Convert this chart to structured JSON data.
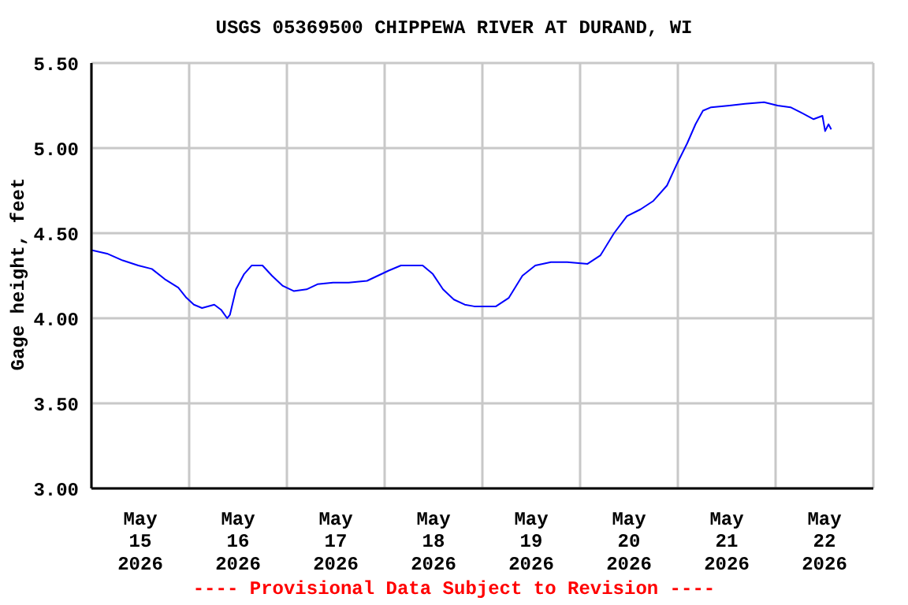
{
  "chart_data": {
    "type": "line",
    "title": "USGS 05369500 CHIPPEWA RIVER AT DURAND, WI",
    "ylabel": "Gage height, feet",
    "annotations": [
      "---- Provisional Data Subject to Revision ----"
    ],
    "x": [
      "2026-05-15T00:00",
      "2026-05-15T03:50",
      "2026-05-15T07:40",
      "2026-05-15T11:30",
      "2026-05-15T14:50",
      "2026-05-15T18:00",
      "2026-05-15T21:20",
      "2026-05-15T23:20",
      "2026-05-16T01:10",
      "2026-05-16T03:10",
      "2026-05-16T06:10",
      "2026-05-16T07:50",
      "2026-05-16T09:20",
      "2026-05-16T10:00",
      "2026-05-16T11:30",
      "2026-05-16T13:30",
      "2026-05-16T15:20",
      "2026-05-16T18:00",
      "2026-05-16T20:20",
      "2026-05-16T23:00",
      "2026-05-17T01:40",
      "2026-05-17T04:50",
      "2026-05-17T07:30",
      "2026-05-17T11:20",
      "2026-05-17T15:10",
      "2026-05-17T19:40",
      "2026-05-17T22:20",
      "2026-05-18T01:00",
      "2026-05-18T04:00",
      "2026-05-18T09:20",
      "2026-05-18T11:50",
      "2026-05-18T14:20",
      "2026-05-18T17:00",
      "2026-05-18T19:40",
      "2026-05-18T22:00",
      "2026-05-19T00:00",
      "2026-05-19T03:20",
      "2026-05-19T06:30",
      "2026-05-19T09:50",
      "2026-05-19T13:00",
      "2026-05-19T16:50",
      "2026-05-19T20:50",
      "2026-05-20T01:50",
      "2026-05-20T05:00",
      "2026-05-20T08:20",
      "2026-05-20T11:30",
      "2026-05-20T14:50",
      "2026-05-20T18:00",
      "2026-05-20T21:20",
      "2026-05-20T23:50",
      "2026-05-21T02:20",
      "2026-05-21T04:20",
      "2026-05-21T06:10",
      "2026-05-21T08:10",
      "2026-05-21T12:40",
      "2026-05-21T16:30",
      "2026-05-21T21:10",
      "2026-05-22T00:30",
      "2026-05-22T03:40",
      "2026-05-22T06:10",
      "2026-05-22T09:20",
      "2026-05-22T11:30",
      "2026-05-22T12:10",
      "2026-05-22T13:00",
      "2026-05-22T13:40"
    ],
    "series": [
      {
        "color": "#0000ff",
        "values": [
          4.4,
          4.38,
          4.34,
          4.31,
          4.29,
          4.23,
          4.18,
          4.12,
          4.08,
          4.06,
          4.08,
          4.05,
          4.0,
          4.02,
          4.17,
          4.26,
          4.31,
          4.31,
          4.25,
          4.19,
          4.16,
          4.17,
          4.2,
          4.21,
          4.21,
          4.22,
          4.25,
          4.28,
          4.31,
          4.31,
          4.26,
          4.17,
          4.11,
          4.08,
          4.07,
          4.07,
          4.07,
          4.12,
          4.25,
          4.31,
          4.33,
          4.33,
          4.32,
          4.37,
          4.5,
          4.6,
          4.64,
          4.69,
          4.78,
          4.91,
          5.03,
          5.14,
          5.22,
          5.24,
          5.25,
          5.26,
          5.27,
          5.25,
          5.24,
          5.21,
          5.17,
          5.19,
          5.1,
          5.14,
          5.11
        ]
      }
    ],
    "xlim": [
      "2026-05-15T00:00",
      "2026-05-23T00:00"
    ],
    "xticks": [
      {
        "value": "2026-05-15T00:00",
        "label": null
      },
      {
        "value": "2026-05-15T12:00",
        "label": "May\n15\n2026"
      },
      {
        "value": "2026-05-16T00:00",
        "label": null
      },
      {
        "value": "2026-05-16T12:00",
        "label": "May\n16\n2026"
      },
      {
        "value": "2026-05-17T00:00",
        "label": null
      },
      {
        "value": "2026-05-17T12:00",
        "label": "May\n17\n2026"
      },
      {
        "value": "2026-05-18T00:00",
        "label": null
      },
      {
        "value": "2026-05-18T12:00",
        "label": "May\n18\n2026"
      },
      {
        "value": "2026-05-19T00:00",
        "label": null
      },
      {
        "value": "2026-05-19T12:00",
        "label": "May\n19\n2026"
      },
      {
        "value": "2026-05-20T00:00",
        "label": null
      },
      {
        "value": "2026-05-20T12:00",
        "label": "May\n20\n2026"
      },
      {
        "value": "2026-05-21T00:00",
        "label": null
      },
      {
        "value": "2026-05-21T12:00",
        "label": "May\n21\n2026"
      },
      {
        "value": "2026-05-22T00:00",
        "label": null
      },
      {
        "value": "2026-05-22T12:00",
        "label": "May\n22\n2026"
      },
      {
        "value": "2026-05-23T00:00",
        "label": null
      }
    ],
    "ylim": [
      3.0,
      5.5
    ],
    "yticks": [
      {
        "value": 3.0,
        "label": "3.00"
      },
      {
        "value": 3.5,
        "label": "3.50"
      },
      {
        "value": 4.0,
        "label": "4.00"
      },
      {
        "value": 4.5,
        "label": "4.50"
      },
      {
        "value": 5.0,
        "label": "5.00"
      },
      {
        "value": 5.5,
        "label": "5.50"
      }
    ],
    "grid": true,
    "marker": "none",
    "line_style": "solid"
  }
}
